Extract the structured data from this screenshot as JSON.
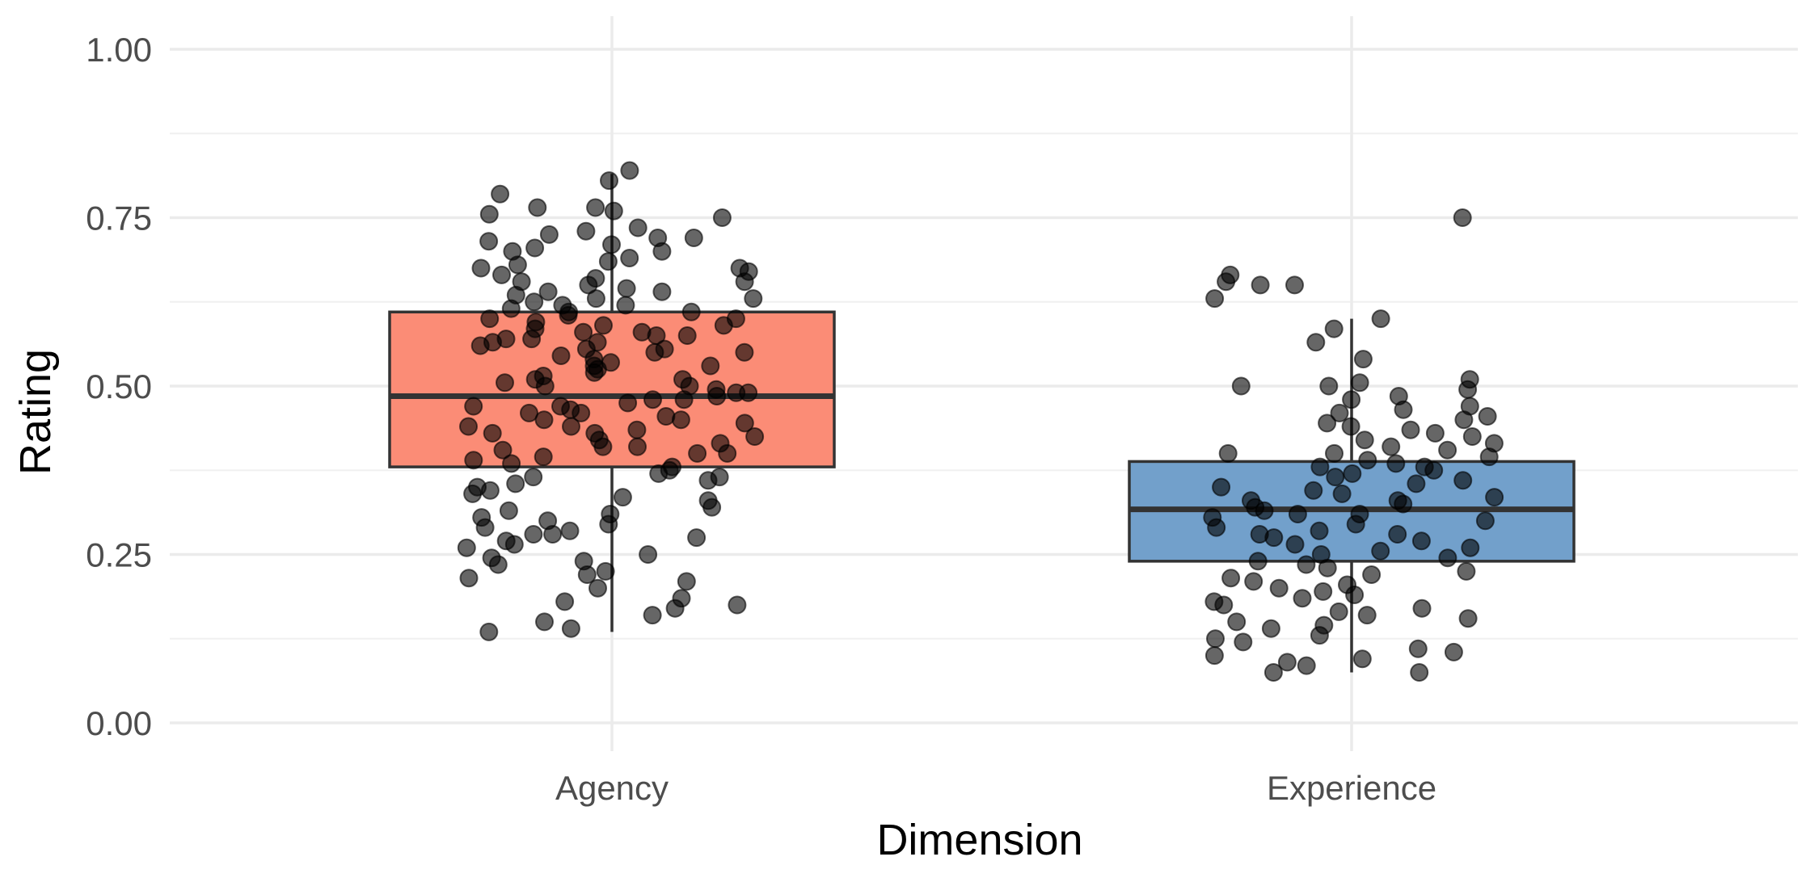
{
  "chart_data": {
    "type": "boxplot",
    "xlabel": "Dimension",
    "ylabel": "Rating",
    "ylim": [
      0,
      1
    ],
    "yticks": [
      "0.00",
      "0.25",
      "0.50",
      "0.75",
      "1.00"
    ],
    "ytick_values": [
      0,
      0.25,
      0.5,
      0.75,
      1
    ],
    "grid": true,
    "categories": [
      "Agency",
      "Experience"
    ],
    "colors": {
      "Agency": "#fb8c76",
      "Experience": "#72a0cb",
      "points": "#000000"
    },
    "boxes": [
      {
        "category": "Agency",
        "q1": 0.38,
        "median": 0.485,
        "q3": 0.61,
        "whisker_low": 0.135,
        "whisker_high": 0.815
      },
      {
        "category": "Experience",
        "q1": 0.24,
        "median": 0.317,
        "q3": 0.388,
        "whisker_low": 0.075,
        "whisker_high": 0.6
      }
    ],
    "points": [
      {
        "category": "Agency",
        "values": [
          0.805,
          0.82,
          0.785,
          0.765,
          0.765,
          0.76,
          0.755,
          0.75,
          0.735,
          0.73,
          0.725,
          0.72,
          0.72,
          0.715,
          0.71,
          0.705,
          0.7,
          0.7,
          0.69,
          0.685,
          0.68,
          0.675,
          0.675,
          0.67,
          0.665,
          0.66,
          0.655,
          0.655,
          0.65,
          0.645,
          0.64,
          0.64,
          0.635,
          0.63,
          0.63,
          0.625,
          0.62,
          0.62,
          0.615,
          0.61,
          0.61,
          0.605,
          0.6,
          0.6,
          0.595,
          0.59,
          0.59,
          0.585,
          0.58,
          0.58,
          0.575,
          0.575,
          0.57,
          0.57,
          0.565,
          0.565,
          0.56,
          0.555,
          0.555,
          0.55,
          0.55,
          0.545,
          0.54,
          0.535,
          0.53,
          0.53,
          0.525,
          0.52,
          0.515,
          0.51,
          0.51,
          0.505,
          0.5,
          0.5,
          0.495,
          0.49,
          0.49,
          0.485,
          0.48,
          0.48,
          0.475,
          0.47,
          0.47,
          0.465,
          0.46,
          0.46,
          0.455,
          0.45,
          0.45,
          0.445,
          0.44,
          0.44,
          0.435,
          0.43,
          0.43,
          0.425,
          0.42,
          0.415,
          0.41,
          0.41,
          0.405,
          0.4,
          0.4,
          0.395,
          0.39,
          0.385,
          0.38,
          0.375,
          0.37,
          0.365,
          0.365,
          0.36,
          0.355,
          0.35,
          0.345,
          0.34,
          0.335,
          0.33,
          0.32,
          0.315,
          0.31,
          0.305,
          0.3,
          0.295,
          0.29,
          0.285,
          0.28,
          0.28,
          0.275,
          0.27,
          0.265,
          0.26,
          0.25,
          0.245,
          0.24,
          0.235,
          0.225,
          0.22,
          0.215,
          0.21,
          0.2,
          0.185,
          0.18,
          0.175,
          0.17,
          0.16,
          0.15,
          0.14,
          0.135
        ]
      },
      {
        "category": "Experience",
        "values": [
          0.75,
          0.665,
          0.655,
          0.65,
          0.65,
          0.63,
          0.6,
          0.585,
          0.565,
          0.54,
          0.51,
          0.505,
          0.5,
          0.5,
          0.495,
          0.485,
          0.48,
          0.47,
          0.465,
          0.46,
          0.455,
          0.45,
          0.445,
          0.44,
          0.435,
          0.43,
          0.425,
          0.42,
          0.415,
          0.41,
          0.405,
          0.4,
          0.4,
          0.395,
          0.39,
          0.385,
          0.38,
          0.38,
          0.375,
          0.37,
          0.365,
          0.36,
          0.355,
          0.35,
          0.345,
          0.34,
          0.335,
          0.33,
          0.33,
          0.325,
          0.32,
          0.315,
          0.31,
          0.31,
          0.305,
          0.3,
          0.295,
          0.29,
          0.285,
          0.28,
          0.28,
          0.275,
          0.27,
          0.265,
          0.26,
          0.255,
          0.25,
          0.245,
          0.24,
          0.235,
          0.23,
          0.225,
          0.22,
          0.215,
          0.21,
          0.205,
          0.2,
          0.195,
          0.19,
          0.185,
          0.18,
          0.175,
          0.17,
          0.165,
          0.16,
          0.155,
          0.15,
          0.145,
          0.14,
          0.13,
          0.125,
          0.12,
          0.11,
          0.105,
          0.1,
          0.095,
          0.09,
          0.085,
          0.075,
          0.075
        ]
      }
    ]
  }
}
